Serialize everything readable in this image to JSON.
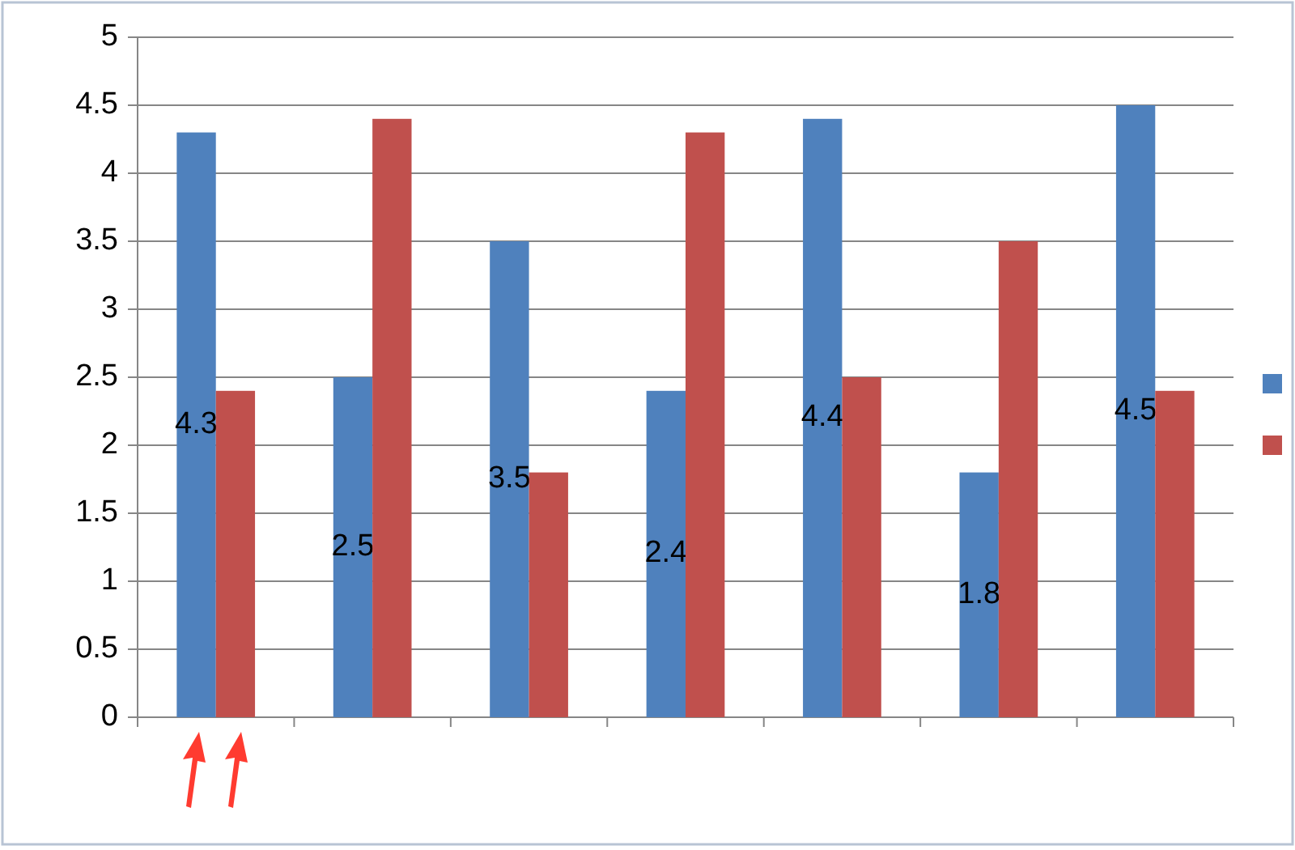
{
  "chart_data": {
    "type": "bar",
    "categories": [
      null,
      null,
      null,
      null,
      null,
      null,
      null
    ],
    "series": [
      {
        "color": "#4f81bd",
        "values": [
          4.3,
          2.5,
          3.5,
          2.4,
          4.4,
          1.8,
          4.5
        ],
        "value_labels": [
          "4.3",
          "2.5",
          "3.5",
          "2.4",
          "4.4",
          "1.8",
          "4.5"
        ]
      },
      {
        "color": "#c0504d",
        "values": [
          2.4,
          4.4,
          1.8,
          4.3,
          2.5,
          3.5,
          2.4
        ]
      }
    ],
    "ylim": [
      0,
      5
    ],
    "yticks": [
      0,
      0.5,
      1,
      1.5,
      2,
      2.5,
      3,
      3.5,
      4,
      4.5,
      5
    ],
    "grid": "y"
  }
}
